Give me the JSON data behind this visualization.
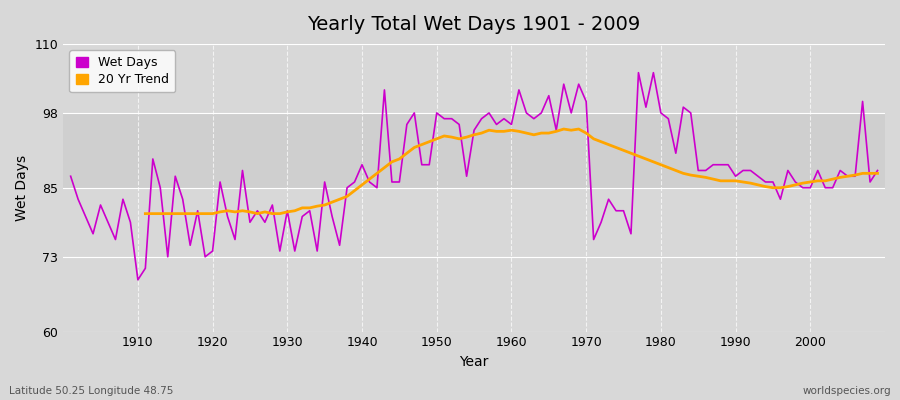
{
  "title": "Yearly Total Wet Days 1901 - 2009",
  "xlabel": "Year",
  "ylabel": "Wet Days",
  "subtitle_left": "Latitude 50.25 Longitude 48.75",
  "subtitle_right": "worldspecies.org",
  "ylim": [
    60,
    110
  ],
  "yticks": [
    60,
    73,
    85,
    98,
    110
  ],
  "bg_color": "#d8d8d8",
  "plot_bg_color": "#d8d8d8",
  "line_color": "#cc00cc",
  "trend_color": "#ffa500",
  "legend_entries": [
    "Wet Days",
    "20 Yr Trend"
  ],
  "years": [
    1901,
    1902,
    1903,
    1904,
    1905,
    1906,
    1907,
    1908,
    1909,
    1910,
    1911,
    1912,
    1913,
    1914,
    1915,
    1916,
    1917,
    1918,
    1919,
    1920,
    1921,
    1922,
    1923,
    1924,
    1925,
    1926,
    1927,
    1928,
    1929,
    1930,
    1931,
    1932,
    1933,
    1934,
    1935,
    1936,
    1937,
    1938,
    1939,
    1940,
    1941,
    1942,
    1943,
    1944,
    1945,
    1946,
    1947,
    1948,
    1949,
    1950,
    1951,
    1952,
    1953,
    1954,
    1955,
    1956,
    1957,
    1958,
    1959,
    1960,
    1961,
    1962,
    1963,
    1964,
    1965,
    1966,
    1967,
    1968,
    1969,
    1970,
    1971,
    1972,
    1973,
    1974,
    1975,
    1976,
    1977,
    1978,
    1979,
    1980,
    1981,
    1982,
    1983,
    1984,
    1985,
    1986,
    1987,
    1988,
    1989,
    1990,
    1991,
    1992,
    1993,
    1994,
    1995,
    1996,
    1997,
    1998,
    1999,
    2000,
    2001,
    2002,
    2003,
    2004,
    2005,
    2006,
    2007,
    2008,
    2009
  ],
  "wet_days": [
    87,
    83,
    80,
    77,
    82,
    79,
    76,
    83,
    79,
    69,
    71,
    90,
    85,
    73,
    87,
    83,
    75,
    81,
    73,
    74,
    86,
    80,
    76,
    88,
    79,
    81,
    79,
    82,
    74,
    81,
    74,
    80,
    81,
    74,
    86,
    80,
    75,
    85,
    86,
    89,
    86,
    85,
    102,
    86,
    86,
    96,
    98,
    89,
    89,
    98,
    97,
    97,
    96,
    87,
    95,
    97,
    98,
    96,
    97,
    96,
    102,
    98,
    97,
    98,
    101,
    95,
    103,
    98,
    103,
    100,
    76,
    79,
    83,
    81,
    81,
    77,
    105,
    99,
    105,
    98,
    97,
    91,
    99,
    98,
    88,
    88,
    89,
    89,
    89,
    87,
    88,
    88,
    87,
    86,
    86,
    83,
    88,
    86,
    85,
    85,
    88,
    85,
    85,
    88,
    87,
    87,
    100,
    86,
    88
  ],
  "trend": [
    null,
    null,
    null,
    null,
    null,
    null,
    null,
    null,
    null,
    null,
    80.5,
    80.5,
    80.5,
    80.5,
    80.5,
    80.5,
    80.5,
    80.5,
    80.5,
    80.5,
    80.8,
    81.0,
    80.8,
    81.0,
    80.8,
    80.5,
    80.8,
    80.5,
    80.5,
    80.8,
    81.0,
    81.5,
    81.5,
    81.8,
    82.0,
    82.5,
    83.0,
    83.5,
    84.5,
    85.5,
    86.5,
    87.5,
    88.5,
    89.5,
    90.0,
    91.0,
    92.0,
    92.5,
    93.0,
    93.5,
    94.0,
    93.8,
    93.5,
    93.8,
    94.2,
    94.5,
    95.0,
    94.8,
    94.8,
    95.0,
    94.8,
    94.5,
    94.2,
    94.5,
    94.5,
    94.8,
    95.2,
    95.0,
    95.2,
    94.5,
    93.5,
    93.0,
    92.5,
    92.0,
    91.5,
    91.0,
    90.5,
    90.0,
    89.5,
    89.0,
    88.5,
    88.0,
    87.5,
    87.2,
    87.0,
    86.8,
    86.5,
    86.2,
    86.2,
    86.2,
    86.0,
    85.8,
    85.5,
    85.2,
    85.0,
    85.0,
    85.2,
    85.5,
    85.8,
    86.0,
    86.2,
    86.2,
    86.5,
    86.8,
    87.0,
    87.2,
    87.5,
    87.5,
    87.5
  ]
}
